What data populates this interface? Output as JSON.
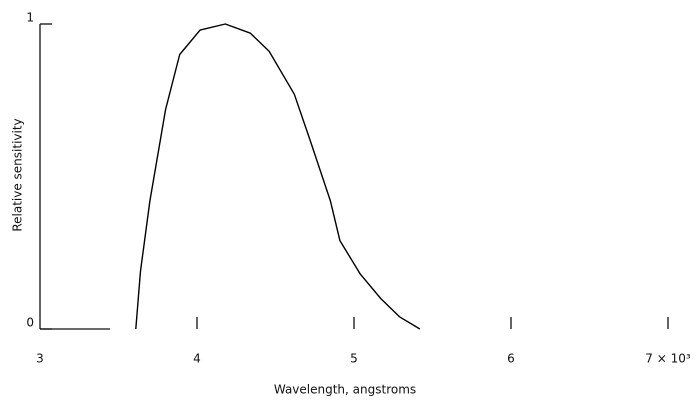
{
  "chart_data": {
    "type": "line",
    "x_label": "Wavelength, angstroms",
    "y_label": "Relative sensitivity",
    "series": [
      {
        "name": null,
        "color": "#000000",
        "x": [
          3.61,
          3.64,
          3.7,
          3.8,
          3.89,
          4.02,
          4.18,
          4.34,
          4.46,
          4.62,
          4.72,
          4.85,
          4.91,
          5.04,
          5.17,
          5.29,
          5.42
        ],
        "values": [
          0,
          0.19,
          0.42,
          0.72,
          0.9,
          0.98,
          1.0,
          0.97,
          0.91,
          0.77,
          0.62,
          0.42,
          0.29,
          0.18,
          0.1,
          0.04,
          0
        ]
      }
    ],
    "xlim": [
      3,
      7
    ],
    "xticks": [
      3,
      4,
      5,
      6,
      {
        "value": 7,
        "label": "7 × 10³"
      }
    ],
    "ylim": [
      0,
      1
    ],
    "yticks": [
      0,
      1
    ]
  }
}
